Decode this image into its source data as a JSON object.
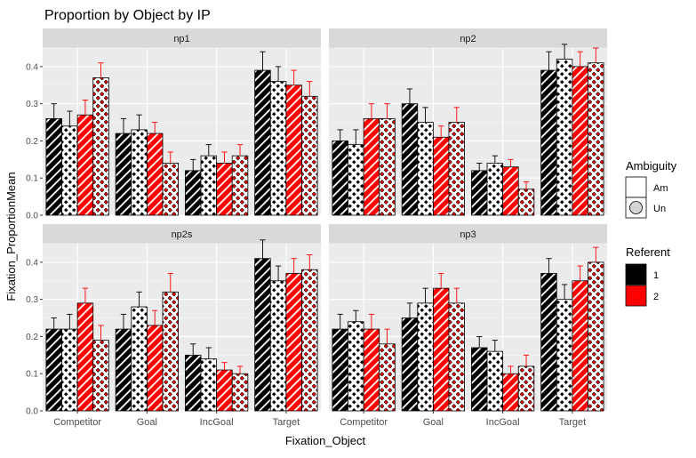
{
  "chart_data": {
    "type": "bar",
    "title": "Proportion by Object by IP",
    "xlabel": "Fixation_Object",
    "ylabel": "Fixation_ProportionMean",
    "categories": [
      "Competitor",
      "Goal",
      "IncGoal",
      "Target"
    ],
    "ylim": [
      0,
      0.45
    ],
    "yticks": [
      "0.0",
      "0.1",
      "0.2",
      "0.3",
      "0.4"
    ],
    "grid": true,
    "legend_position": "right",
    "legends": [
      {
        "title": "Ambiguity",
        "entries": [
          {
            "label": "Am",
            "pattern": "stripe"
          },
          {
            "label": "Un",
            "pattern": "circle"
          }
        ]
      },
      {
        "title": "Referent",
        "entries": [
          {
            "label": "1",
            "color": "#000000"
          },
          {
            "label": "2",
            "color": "#ff0000"
          }
        ]
      }
    ],
    "series": [
      {
        "referent": "1",
        "ambiguity": "Am",
        "color": "#000000",
        "pattern": "stripe"
      },
      {
        "referent": "1",
        "ambiguity": "Un",
        "color": "#000000",
        "pattern": "circle"
      },
      {
        "referent": "2",
        "ambiguity": "Am",
        "color": "#ff0000",
        "pattern": "stripe"
      },
      {
        "referent": "2",
        "ambiguity": "Un",
        "color": "#ff0000",
        "pattern": "circle"
      }
    ],
    "panels": [
      {
        "name": "np1",
        "values": [
          [
            0.26,
            0.24,
            0.27,
            0.37
          ],
          [
            0.22,
            0.23,
            0.22,
            0.14
          ],
          [
            0.12,
            0.16,
            0.14,
            0.16
          ],
          [
            0.39,
            0.36,
            0.35,
            0.32
          ]
        ],
        "errors": [
          [
            0.04,
            0.04,
            0.04,
            0.04
          ],
          [
            0.04,
            0.04,
            0.03,
            0.03
          ],
          [
            0.03,
            0.03,
            0.03,
            0.03
          ],
          [
            0.05,
            0.04,
            0.04,
            0.04
          ]
        ]
      },
      {
        "name": "np2",
        "values": [
          [
            0.2,
            0.19,
            0.26,
            0.26
          ],
          [
            0.3,
            0.25,
            0.21,
            0.25
          ],
          [
            0.12,
            0.14,
            0.13,
            0.07
          ],
          [
            0.39,
            0.42,
            0.4,
            0.41
          ]
        ],
        "errors": [
          [
            0.03,
            0.04,
            0.04,
            0.04
          ],
          [
            0.04,
            0.04,
            0.03,
            0.04
          ],
          [
            0.02,
            0.02,
            0.02,
            0.02
          ],
          [
            0.05,
            0.04,
            0.04,
            0.04
          ]
        ]
      },
      {
        "name": "np2s",
        "values": [
          [
            0.22,
            0.22,
            0.29,
            0.19
          ],
          [
            0.22,
            0.28,
            0.23,
            0.32
          ],
          [
            0.15,
            0.14,
            0.11,
            0.1
          ],
          [
            0.41,
            0.35,
            0.37,
            0.38
          ]
        ],
        "errors": [
          [
            0.03,
            0.04,
            0.04,
            0.04
          ],
          [
            0.04,
            0.04,
            0.04,
            0.05
          ],
          [
            0.03,
            0.03,
            0.02,
            0.02
          ],
          [
            0.05,
            0.04,
            0.04,
            0.04
          ]
        ]
      },
      {
        "name": "np3",
        "values": [
          [
            0.22,
            0.24,
            0.22,
            0.18
          ],
          [
            0.25,
            0.29,
            0.33,
            0.29
          ],
          [
            0.17,
            0.16,
            0.1,
            0.12
          ],
          [
            0.37,
            0.3,
            0.35,
            0.4
          ]
        ],
        "errors": [
          [
            0.04,
            0.03,
            0.04,
            0.04
          ],
          [
            0.04,
            0.04,
            0.04,
            0.04
          ],
          [
            0.03,
            0.03,
            0.02,
            0.03
          ],
          [
            0.04,
            0.04,
            0.04,
            0.04
          ]
        ]
      }
    ]
  }
}
